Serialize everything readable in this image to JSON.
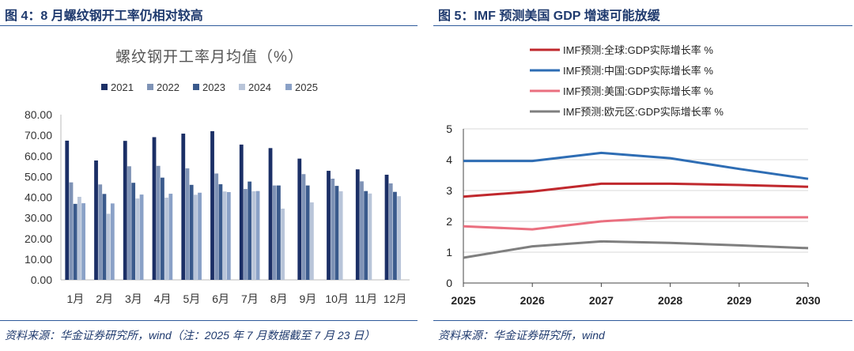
{
  "left": {
    "figure_title": "图 4：8 月螺纹钢开工率仍相对较高",
    "source": "资料来源：华金证券研究所，wind（注：2025 年 7 月数据截至 7 月 23 日）"
  },
  "right": {
    "figure_title": "图 5：IMF 预测美国 GDP 增速可能放缓",
    "source": "资料来源：华金证券研究所，wind"
  },
  "chart_data": [
    {
      "type": "bar",
      "title": "螺纹钢开工率月均值（%）",
      "categories": [
        "1月",
        "2月",
        "3月",
        "4月",
        "5月",
        "6月",
        "7月",
        "8月",
        "9月",
        "10月",
        "11月",
        "12月"
      ],
      "ylim": [
        0,
        80
      ],
      "yticks": [
        "0.00",
        "10.00",
        "20.00",
        "30.00",
        "40.00",
        "50.00",
        "60.00",
        "70.00",
        "80.00"
      ],
      "series": [
        {
          "name": "2021",
          "color": "#1b2f66",
          "values": [
            67.4,
            57.8,
            67.3,
            69.1,
            70.8,
            72.0,
            65.5,
            63.8,
            58.7,
            52.8,
            53.5,
            50.9
          ]
        },
        {
          "name": "2022",
          "color": "#7f93b6",
          "values": [
            47.2,
            46.2,
            55.0,
            55.2,
            54.0,
            51.5,
            44.0,
            45.7,
            51.2,
            49.0,
            47.7,
            46.7
          ]
        },
        {
          "name": "2023",
          "color": "#3a5a8c",
          "values": [
            36.8,
            41.6,
            47.0,
            49.5,
            46.0,
            46.3,
            47.6,
            45.7,
            45.7,
            45.5,
            43.0,
            42.6
          ]
        },
        {
          "name": "2024",
          "color": "#b9c5d9",
          "values": [
            40.2,
            32.0,
            39.4,
            39.8,
            41.2,
            42.8,
            42.9,
            34.5,
            37.5,
            42.9,
            41.8,
            40.5
          ]
        },
        {
          "name": "2025",
          "color": "#8aa1c7",
          "values": [
            37.1,
            37.0,
            41.3,
            41.7,
            42.2,
            42.5,
            43.0,
            null,
            null,
            null,
            null,
            null
          ]
        }
      ]
    },
    {
      "type": "line",
      "title": "",
      "x": [
        2025,
        2026,
        2027,
        2028,
        2029,
        2030
      ],
      "xticks": [
        "2025",
        "2026",
        "2027",
        "2028",
        "2029",
        "2030"
      ],
      "ylim": [
        0,
        5
      ],
      "yticks": [
        "0",
        "1",
        "2",
        "3",
        "4",
        "5"
      ],
      "series": [
        {
          "name": "IMF预测:全球:GDP实际增长率 %",
          "color": "#c0282d",
          "values": [
            2.8,
            2.97,
            3.22,
            3.22,
            3.18,
            3.12
          ]
        },
        {
          "name": "IMF预测:中国:GDP实际增长率 %",
          "color": "#2e6db4",
          "values": [
            3.96,
            3.96,
            4.22,
            4.05,
            3.7,
            3.38
          ]
        },
        {
          "name": "IMF预测:美国:GDP实际增长率 %",
          "color": "#ea6f7f",
          "values": [
            1.84,
            1.74,
            2.0,
            2.13,
            2.13,
            2.13
          ]
        },
        {
          "name": "IMF预测:欧元区:GDP实际增长率 %",
          "color": "#7f7f7f",
          "values": [
            0.82,
            1.19,
            1.35,
            1.3,
            1.22,
            1.13
          ]
        }
      ]
    }
  ]
}
